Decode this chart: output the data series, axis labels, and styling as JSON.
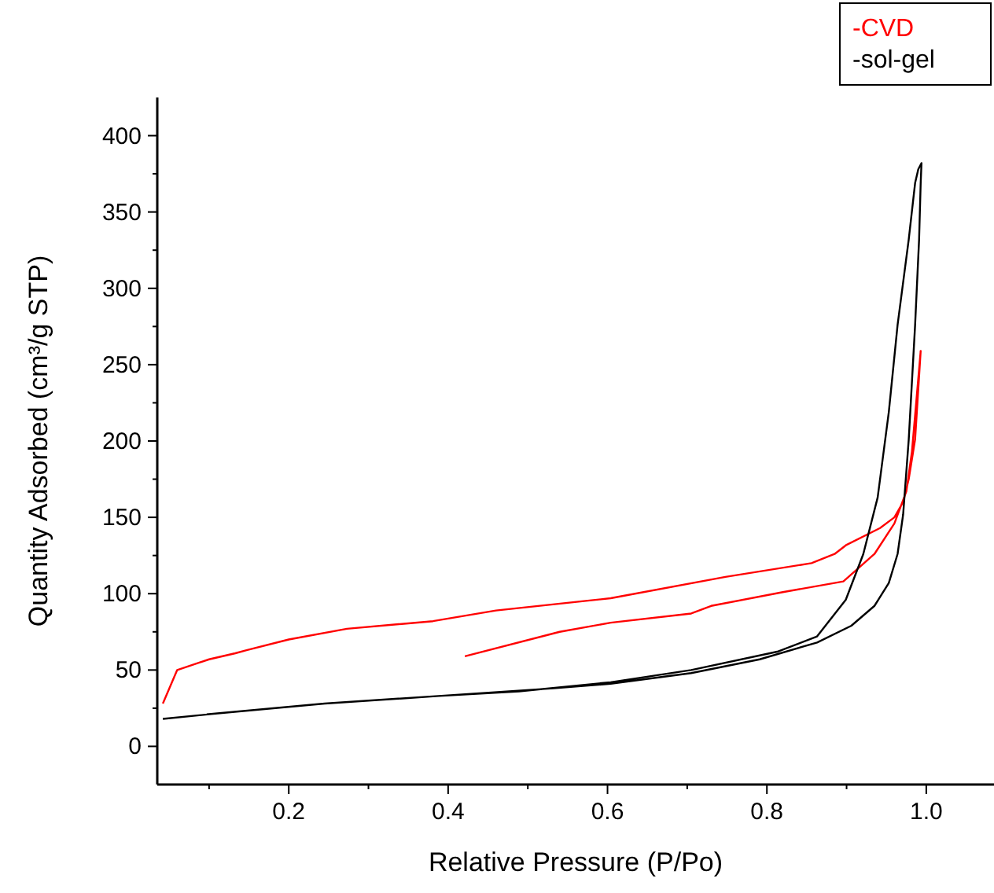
{
  "chart_data": {
    "type": "line",
    "xlabel": "Relative Pressure (P/Po)",
    "ylabel": "Quantity Adsorbed (cm³/g STP)",
    "xlim": [
      0.035,
      1.085
    ],
    "ylim": [
      -25,
      425
    ],
    "xticks": [
      {
        "value": 0.1,
        "label": null
      },
      0.2,
      {
        "value": 0.3,
        "label": null
      },
      0.4,
      {
        "value": 0.5,
        "label": null
      },
      0.6,
      {
        "value": 0.7,
        "label": null
      },
      0.8,
      {
        "value": 0.9,
        "label": null
      },
      "1.0"
    ],
    "yticks": [
      0,
      {
        "value": 25,
        "label": null
      },
      50,
      {
        "value": 75,
        "label": null
      },
      100,
      {
        "value": 125,
        "label": null
      },
      150,
      {
        "value": 175,
        "label": null
      },
      200,
      {
        "value": 225,
        "label": null
      },
      250,
      {
        "value": 275,
        "label": null
      },
      300,
      {
        "value": 325,
        "label": null
      },
      350,
      {
        "value": 375,
        "label": null
      },
      400
    ],
    "grid": false,
    "legend": "top right",
    "marker": "none",
    "line_style": "solid",
    "series": [
      {
        "name": "-CVD",
        "color": "#ff0000",
        "x": [
          0.421,
          0.54,
          0.604,
          0.705,
          0.73,
          0.82,
          0.896,
          0.935,
          0.96,
          0.975,
          0.982,
          0.993,
          0.986,
          0.978,
          0.971,
          0.96,
          0.942,
          0.9,
          0.885,
          0.856,
          0.748,
          0.604,
          0.46,
          0.381,
          0.338,
          0.273,
          0.2,
          0.147,
          0.133,
          0.1,
          0.06,
          0.042
        ],
        "values": [
          59,
          75,
          81,
          87,
          92,
          101,
          108,
          126,
          146,
          167,
          193,
          259,
          201,
          175,
          160,
          150,
          143,
          132,
          126,
          120,
          111,
          97,
          89,
          82,
          80,
          77,
          70,
          63,
          61,
          57,
          50,
          28
        ]
      },
      {
        "name": "-sol-gel",
        "color": "#000000",
        "x": [
          0.042,
          0.1,
          0.245,
          0.388,
          0.532,
          0.604,
          0.705,
          0.791,
          0.863,
          0.906,
          0.935,
          0.953,
          0.964,
          0.971,
          0.978,
          0.986,
          0.991,
          0.993,
          0.994,
          0.99,
          0.986,
          0.978,
          0.964,
          0.953,
          0.939,
          0.921,
          0.899,
          0.863,
          0.813,
          0.705,
          0.604,
          0.489,
          0.388,
          0.245,
          0.097
        ],
        "values": [
          18,
          21,
          28,
          33,
          38,
          41,
          48,
          57,
          68,
          79,
          92,
          107,
          126,
          152,
          201,
          276,
          332,
          369,
          382,
          378,
          369,
          332,
          276,
          219,
          163,
          126,
          96,
          72,
          62,
          50,
          42,
          36,
          33,
          28,
          21
        ]
      }
    ]
  }
}
